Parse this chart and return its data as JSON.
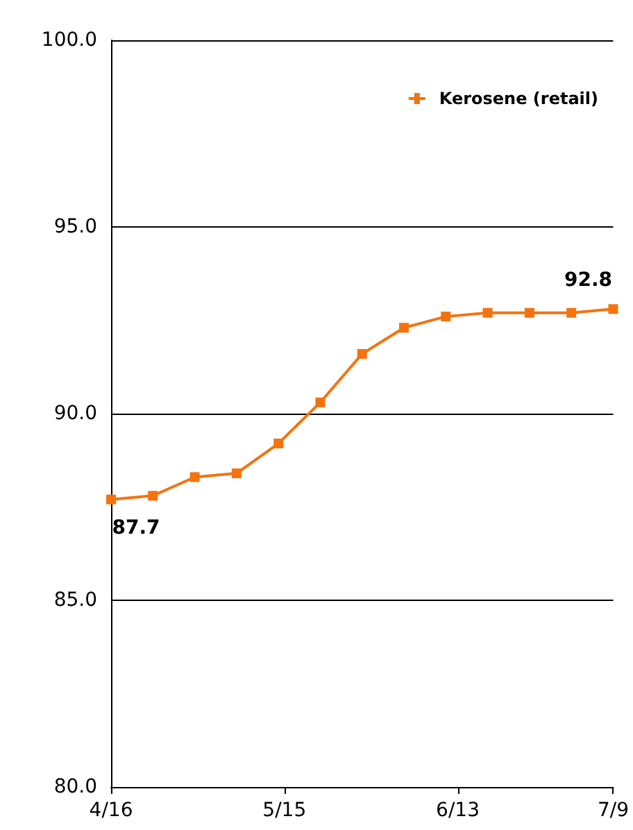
{
  "chart_data": {
    "type": "line",
    "x": [
      "--04-16",
      "--04-23",
      "--04-30",
      "--05-07",
      "--05-14",
      "--05-21",
      "--05-28",
      "--06-04",
      "--06-11",
      "--06-18",
      "--06-25",
      "--07-02",
      "--07-09"
    ],
    "series": [
      {
        "name": "Kerosene (retail)",
        "color": "#f4730f",
        "values": [
          87.7,
          87.8,
          88.3,
          88.4,
          89.2,
          90.3,
          91.6,
          92.3,
          92.6,
          92.7,
          92.7,
          92.7,
          92.8
        ],
        "value_labels": [
          "87.7",
          null,
          null,
          null,
          null,
          null,
          null,
          null,
          null,
          null,
          null,
          null,
          "92.8"
        ]
      }
    ],
    "xlim": [
      "--04-16",
      "--07-09"
    ],
    "xticks": [
      {
        "value": "--04-16",
        "label": "4/16"
      },
      {
        "value": "--05-15",
        "label": "5/15"
      },
      {
        "value": "--06-13",
        "label": "6/13"
      },
      {
        "value": "--07-09",
        "label": "7/9"
      }
    ],
    "ylim": [
      80,
      100
    ],
    "yticks": [
      {
        "value": 80,
        "label": "80.0"
      },
      {
        "value": 85,
        "label": "85.0"
      },
      {
        "value": 90,
        "label": "90.0"
      },
      {
        "value": 95,
        "label": "95.0"
      },
      {
        "value": 100,
        "label": "100.0"
      }
    ],
    "grid": "y",
    "legend": "top right",
    "marker": "square",
    "line_style": "solid"
  }
}
